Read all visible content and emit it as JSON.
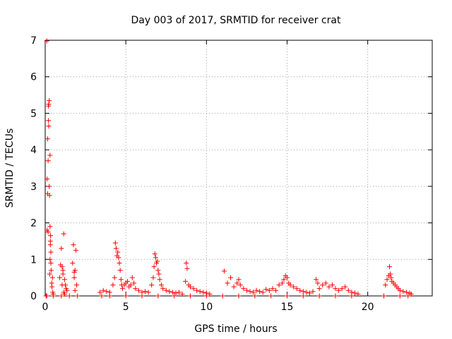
{
  "chart_data": {
    "type": "scatter",
    "title": "Day 003 of 2017, SRMTID for receiver crat",
    "xlabel": "GPS time / hours",
    "ylabel": "SRMTID / TECUs",
    "xlim": [
      0,
      24
    ],
    "ylim": [
      0,
      7
    ],
    "xticks": [
      "0",
      "5",
      "10",
      "15",
      "20"
    ],
    "yticks": [
      "0",
      "1",
      "2",
      "3",
      "4",
      "5",
      "6",
      "7"
    ],
    "grid": true,
    "legend": "none",
    "marker": "+",
    "color": "#ff0000",
    "x": [
      0.05,
      0.1,
      0.12,
      0.15,
      0.18,
      0.2,
      0.22,
      0.25,
      0.27,
      0.3,
      0.3,
      0.32,
      0.33,
      0.35,
      0.37,
      0.4,
      0.42,
      0.45,
      0.47,
      0.5,
      0.12,
      0.15,
      0.18,
      0.2,
      0.22,
      0.25,
      0.28,
      0.3,
      0.32,
      0.35,
      0.9,
      0.95,
      1.0,
      1.05,
      1.1,
      1.15,
      1.2,
      1.25,
      1.3,
      1.35,
      1.05,
      1.1,
      1.15,
      1.2,
      1.7,
      1.75,
      1.8,
      1.85,
      1.9,
      1.95,
      1.8,
      1.85,
      3.4,
      3.6,
      3.8,
      4.0,
      4.2,
      4.3,
      4.35,
      4.4,
      4.45,
      4.5,
      4.55,
      4.6,
      4.65,
      4.7,
      4.75,
      4.8,
      4.9,
      5.0,
      5.1,
      5.2,
      5.3,
      5.4,
      5.5,
      5.6,
      5.8,
      6.0,
      6.2,
      6.4,
      6.6,
      6.7,
      6.75,
      6.8,
      6.85,
      6.9,
      6.95,
      7.0,
      7.05,
      7.1,
      7.2,
      7.3,
      7.5,
      7.7,
      7.9,
      8.1,
      8.3,
      8.5,
      8.7,
      8.75,
      8.8,
      8.9,
      9.0,
      9.2,
      9.4,
      9.6,
      9.8,
      10.0,
      10.2,
      11.1,
      11.3,
      11.5,
      11.7,
      11.9,
      12.0,
      12.1,
      12.3,
      12.5,
      12.7,
      12.9,
      13.1,
      13.3,
      13.5,
      13.7,
      13.9,
      14.1,
      14.3,
      14.5,
      14.7,
      14.8,
      14.9,
      15.0,
      15.1,
      15.2,
      15.4,
      15.6,
      15.8,
      16.0,
      16.2,
      16.4,
      16.6,
      16.8,
      16.9,
      17.0,
      17.2,
      17.4,
      17.6,
      17.8,
      18.0,
      18.2,
      18.4,
      18.6,
      18.8,
      19.0,
      19.2,
      19.4,
      21.1,
      21.2,
      21.3,
      21.35,
      21.4,
      21.45,
      21.5,
      21.6,
      21.7,
      21.8,
      21.9,
      22.0,
      22.2,
      22.4,
      22.6,
      22.7,
      0.1,
      0.5,
      1.0,
      1.5,
      2.0,
      3.5,
      4.0,
      5.0,
      6.0,
      7.0,
      8.0,
      9.0,
      10.0,
      11.0,
      12.0,
      13.0,
      14.0,
      15.0,
      16.0,
      17.0,
      18.0,
      19.0,
      21.0,
      22.0,
      22.5
    ],
    "y": [
      0.0,
      6.98,
      1.8,
      2.8,
      3.7,
      4.8,
      5.25,
      5.35,
      2.75,
      1.9,
      3.85,
      1.5,
      1.65,
      1.2,
      0.7,
      0.35,
      0.25,
      0.5,
      0.1,
      0.05,
      3.2,
      4.3,
      1.75,
      5.2,
      4.65,
      3.0,
      0.6,
      1.0,
      1.4,
      0.9,
      0.5,
      0.85,
      1.3,
      0.8,
      0.7,
      1.7,
      0.45,
      0.3,
      0.2,
      0.15,
      0.3,
      0.6,
      0.1,
      0.05,
      0.9,
      1.4,
      0.65,
      0.7,
      1.25,
      0.3,
      0.5,
      0.15,
      0.1,
      0.15,
      0.12,
      0.1,
      0.3,
      0.5,
      1.45,
      1.3,
      1.1,
      1.2,
      1.05,
      0.9,
      0.7,
      0.45,
      0.3,
      0.2,
      0.3,
      0.35,
      0.4,
      0.25,
      0.3,
      0.5,
      0.35,
      0.2,
      0.15,
      0.1,
      0.12,
      0.1,
      0.3,
      0.5,
      0.8,
      1.15,
      1.05,
      0.9,
      0.95,
      0.7,
      0.6,
      0.45,
      0.3,
      0.2,
      0.15,
      0.12,
      0.1,
      0.08,
      0.1,
      0.05,
      0.4,
      0.9,
      0.75,
      0.3,
      0.25,
      0.2,
      0.15,
      0.12,
      0.1,
      0.08,
      0.05,
      0.68,
      0.35,
      0.5,
      0.25,
      0.35,
      0.45,
      0.3,
      0.2,
      0.15,
      0.12,
      0.1,
      0.15,
      0.12,
      0.1,
      0.18,
      0.15,
      0.2,
      0.15,
      0.3,
      0.35,
      0.45,
      0.55,
      0.5,
      0.35,
      0.3,
      0.25,
      0.2,
      0.15,
      0.12,
      0.1,
      0.08,
      0.12,
      0.45,
      0.35,
      0.2,
      0.3,
      0.35,
      0.25,
      0.3,
      0.2,
      0.15,
      0.2,
      0.25,
      0.15,
      0.1,
      0.08,
      0.05,
      0.3,
      0.45,
      0.55,
      0.8,
      0.6,
      0.5,
      0.4,
      0.35,
      0.3,
      0.25,
      0.2,
      0.15,
      0.12,
      0.1,
      0.08,
      0.05,
      0.0,
      0.0,
      0.0,
      0.0,
      0.0,
      0.0,
      0.0,
      0.0,
      0.0,
      0.0,
      0.0,
      0.0,
      0.0,
      0.0,
      0.0,
      0.0,
      0.0,
      0.0,
      0.0,
      0.0,
      0.0,
      0.0,
      0.0,
      0.0,
      0.0
    ]
  }
}
